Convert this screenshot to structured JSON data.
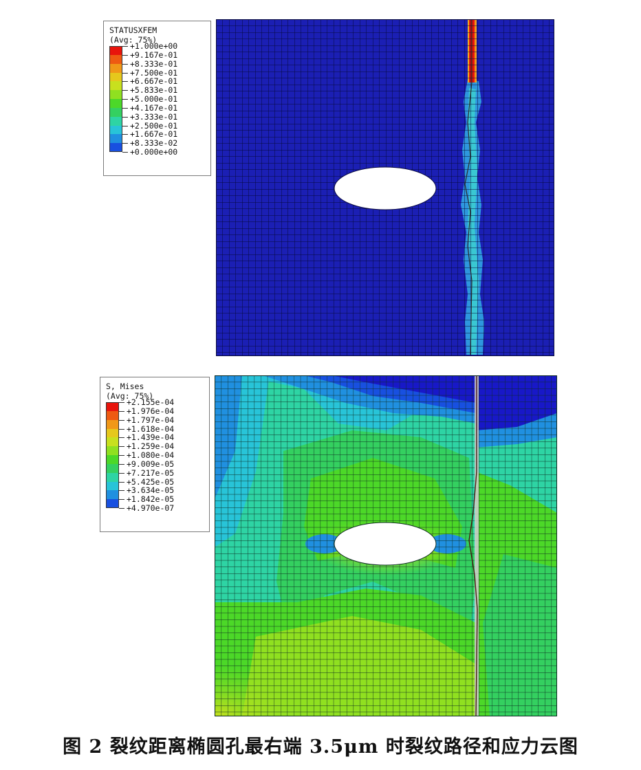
{
  "figure": {
    "top_panel": {
      "legend_title": "STATUSXFEM",
      "legend_avg": "(Avg: 75%)",
      "legend_values": [
        "+1.000e+00",
        "+9.167e-01",
        "+8.333e-01",
        "+7.500e-01",
        "+6.667e-01",
        "+5.833e-01",
        "+5.000e-01",
        "+4.167e-01",
        "+3.333e-01",
        "+2.500e-01",
        "+1.667e-01",
        "+8.333e-02",
        "+0.000e+00"
      ],
      "legend_colors": [
        "#e8140c",
        "#ee5a12",
        "#f09818",
        "#e6c81c",
        "#c8e01e",
        "#90e020",
        "#4cd828",
        "#34d060",
        "#2ed4a4",
        "#28c4d8",
        "#2090e0",
        "#1850e0",
        "#1818c8"
      ],
      "background_color": "#1b1fb4"
    },
    "bottom_panel": {
      "legend_title": "S, Mises",
      "legend_avg": "(Avg: 75%)",
      "legend_values": [
        "+2.155e-04",
        "+1.976e-04",
        "+1.797e-04",
        "+1.618e-04",
        "+1.439e-04",
        "+1.259e-04",
        "+1.080e-04",
        "+9.009e-05",
        "+7.217e-05",
        "+5.425e-05",
        "+3.634e-05",
        "+1.842e-05",
        "+4.970e-07"
      ],
      "legend_colors": [
        "#e8140c",
        "#ee5a12",
        "#f09818",
        "#e6c81c",
        "#c8e01e",
        "#90e020",
        "#4cd828",
        "#34d060",
        "#2ed4a4",
        "#28c4d8",
        "#2090e0",
        "#1850e0",
        "#1818c8"
      ]
    },
    "caption": "图 2  裂纹距离椭圆孔最右端 3.5μm 时裂纹路径和应力云图"
  }
}
